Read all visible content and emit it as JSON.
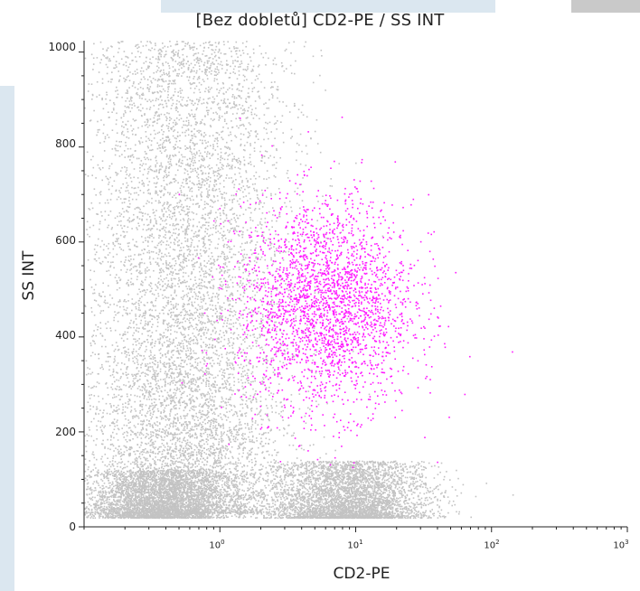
{
  "chart_data": {
    "type": "scatter",
    "title": "[Bez dobletů] CD2-PE / SS INT",
    "xlabel": "CD2-PE",
    "ylabel": "SS INT",
    "x_scale": "log",
    "xlim": [
      0.1,
      1000
    ],
    "ylim": [
      0,
      1024
    ],
    "y_ticks": [
      "0",
      "200",
      "400",
      "600",
      "800",
      "1000"
    ],
    "x_ticks": [
      {
        "base": "10",
        "exp": "0"
      },
      {
        "base": "10",
        "exp": "1"
      },
      {
        "base": "10",
        "exp": "2"
      },
      {
        "base": "10",
        "exp": "3"
      }
    ],
    "series": [
      {
        "color": "#c3c3c3",
        "populations": [
          {
            "x_center": 0.55,
            "x_spread_decades": 0.38,
            "y_range": [
              30,
              1024
            ],
            "fraction": 0.55
          },
          {
            "x_center": 9,
            "x_spread_decades": 0.28,
            "y_range": [
              20,
              140
            ],
            "fraction": 0.25
          },
          {
            "x_center": 0.35,
            "x_spread_decades": 0.25,
            "y_range": [
              20,
              120
            ],
            "fraction": 0.2
          }
        ]
      },
      {
        "color": "#ff19ff",
        "populations": [
          {
            "x_center": 6,
            "x_spread_decades": 0.32,
            "y_center": 470,
            "y_spread": 110,
            "fraction": 1.0
          }
        ]
      }
    ],
    "grid": false
  }
}
